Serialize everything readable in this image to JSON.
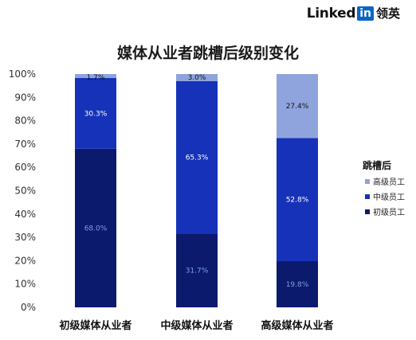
{
  "brand": {
    "word": "Linked",
    "in_badge": "in",
    "cn": "领英"
  },
  "chart_data": {
    "type": "bar",
    "stacked": true,
    "title": "媒体从业者跳槽后级别变化",
    "categories": [
      "初级媒体从业者",
      "中级媒体从业者",
      "高级媒体从业者"
    ],
    "series": [
      {
        "name": "初级员工",
        "values": [
          68.0,
          31.7,
          19.8
        ],
        "color": "#0c1a6e",
        "labels": [
          "68.0%",
          "31.7%",
          "19.8%"
        ],
        "label_color": "#7f9fe0"
      },
      {
        "name": "中级员工",
        "values": [
          30.3,
          65.3,
          52.8
        ],
        "color": "#1532b8",
        "labels": [
          "30.3%",
          "65.3%",
          "52.8%"
        ],
        "label_color": "#ffffff"
      },
      {
        "name": "高级员工",
        "values": [
          1.7,
          3.0,
          27.4
        ],
        "color": "#8fa4dc",
        "labels": [
          "1.7%",
          "3.0%",
          "27.4%"
        ],
        "label_color": "#111111"
      }
    ],
    "y_ticks": [
      "0%",
      "10%",
      "20%",
      "30%",
      "40%",
      "50%",
      "60%",
      "70%",
      "80%",
      "90%",
      "100%"
    ],
    "ylim": [
      0,
      100
    ],
    "legend": {
      "title": "跳槽后",
      "placement": "right",
      "order": [
        "高级员工",
        "中级员工",
        "初级员工"
      ]
    },
    "grid": false
  }
}
